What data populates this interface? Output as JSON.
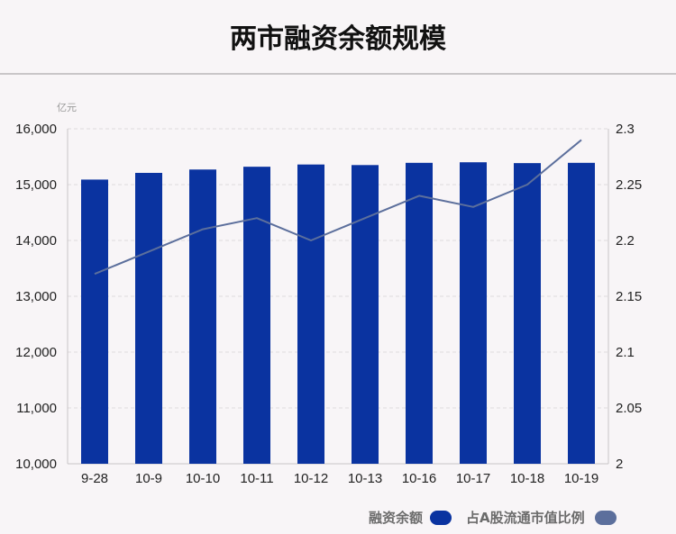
{
  "title": "两市融资余额规模",
  "chart_data": {
    "type": "bar",
    "categories": [
      "9-28",
      "10-9",
      "10-10",
      "10-11",
      "10-12",
      "10-13",
      "10-16",
      "10-17",
      "10-18",
      "10-19"
    ],
    "series": [
      {
        "name": "融资余额",
        "type": "bar",
        "axis": "left",
        "color": "#0a33a0",
        "values": [
          15090,
          15210,
          15270,
          15320,
          15360,
          15350,
          15390,
          15400,
          15385,
          15390
        ]
      },
      {
        "name": "占A股流通市值比例",
        "type": "line",
        "axis": "right",
        "color": "#5c6f9c",
        "values": [
          2.17,
          2.19,
          2.21,
          2.22,
          2.2,
          2.22,
          2.24,
          2.23,
          2.25,
          2.29
        ]
      }
    ],
    "y_left": {
      "unit": "亿元",
      "ylim": [
        10000,
        16000
      ],
      "ticks": [
        10000,
        11000,
        12000,
        13000,
        14000,
        15000,
        16000
      ],
      "tick_labels": [
        "10,000",
        "11,000",
        "12,000",
        "13,000",
        "14,000",
        "15,000",
        "16,000"
      ]
    },
    "y_right": {
      "ylim": [
        2,
        2.3
      ],
      "ticks": [
        2,
        2.05,
        2.1,
        2.15,
        2.2,
        2.25,
        2.3
      ],
      "tick_labels": [
        "2",
        "2.05",
        "2.1",
        "2.15",
        "2.2",
        "2.25",
        "2.3"
      ]
    },
    "grid": true,
    "legend_position": "bottom-right"
  }
}
